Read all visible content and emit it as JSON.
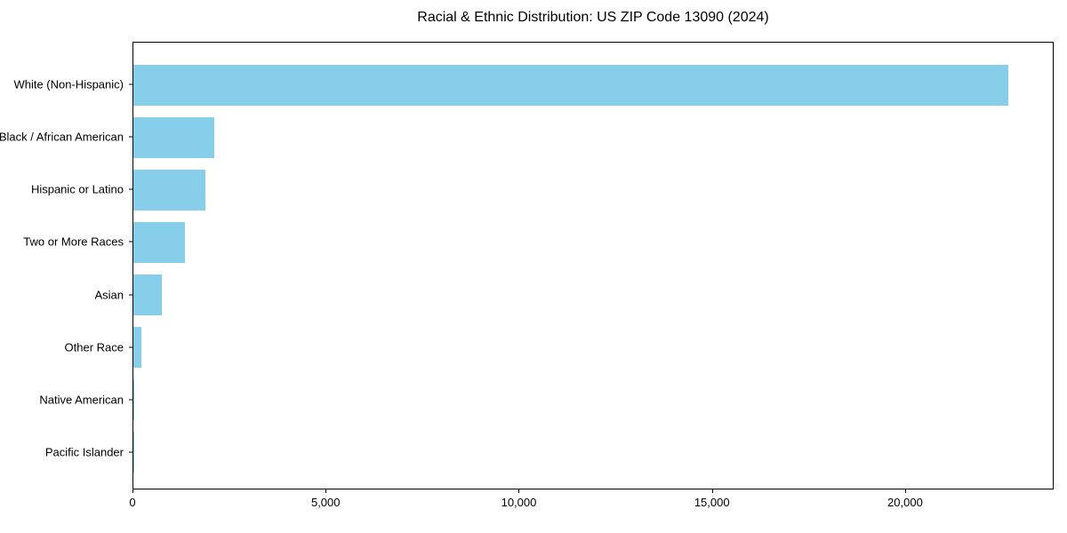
{
  "chart_data": {
    "type": "bar",
    "orientation": "horizontal",
    "title": "Racial & Ethnic Distribution: US ZIP Code 13090 (2024)",
    "categories": [
      "White (Non-Hispanic)",
      "Black / African American",
      "Hispanic or Latino",
      "Two or More Races",
      "Asian",
      "Other Race",
      "Native American",
      "Pacific Islander"
    ],
    "values": [
      22700,
      2100,
      1870,
      1340,
      740,
      200,
      30,
      10
    ],
    "bar_color": "#87CEEB",
    "background_color": "#ffffff",
    "spine_color": "#000000",
    "xlabel": "",
    "ylabel": "",
    "xlim": [
      0,
      23845
    ],
    "x_ticks": [
      0,
      5000,
      10000,
      15000,
      20000
    ],
    "x_tick_labels": [
      "0",
      "5,000",
      "10,000",
      "15,000",
      "20,000"
    ],
    "grid": false,
    "legend": false
  }
}
